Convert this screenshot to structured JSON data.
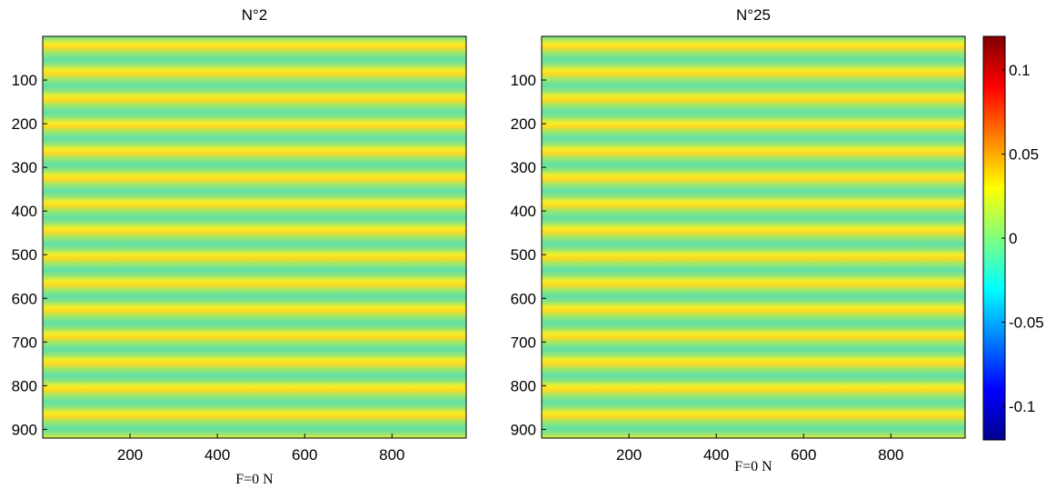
{
  "chart_data": [
    {
      "type": "heatmap",
      "title": "N°2",
      "xlabel": "F=0 N",
      "xlim": [
        0,
        970
      ],
      "ylim": [
        0,
        920
      ],
      "y_reversed": true,
      "xticks": [
        200,
        400,
        600,
        800
      ],
      "yticks": [
        100,
        200,
        300,
        400,
        500,
        600,
        700,
        800,
        900
      ]
    },
    {
      "type": "heatmap",
      "title": "N°25",
      "xlabel": "F=0 N",
      "xlim": [
        0,
        970
      ],
      "ylim": [
        0,
        920
      ],
      "y_reversed": true,
      "xticks": [
        200,
        400,
        600,
        800
      ],
      "yticks": [
        100,
        200,
        300,
        400,
        500,
        600,
        700,
        800,
        900
      ]
    },
    {
      "type": "colorbar",
      "colormap": "jet",
      "clim": [
        -0.12,
        0.12
      ],
      "ticks": [
        -0.1,
        -0.05,
        0,
        0.05,
        0.1
      ]
    }
  ]
}
